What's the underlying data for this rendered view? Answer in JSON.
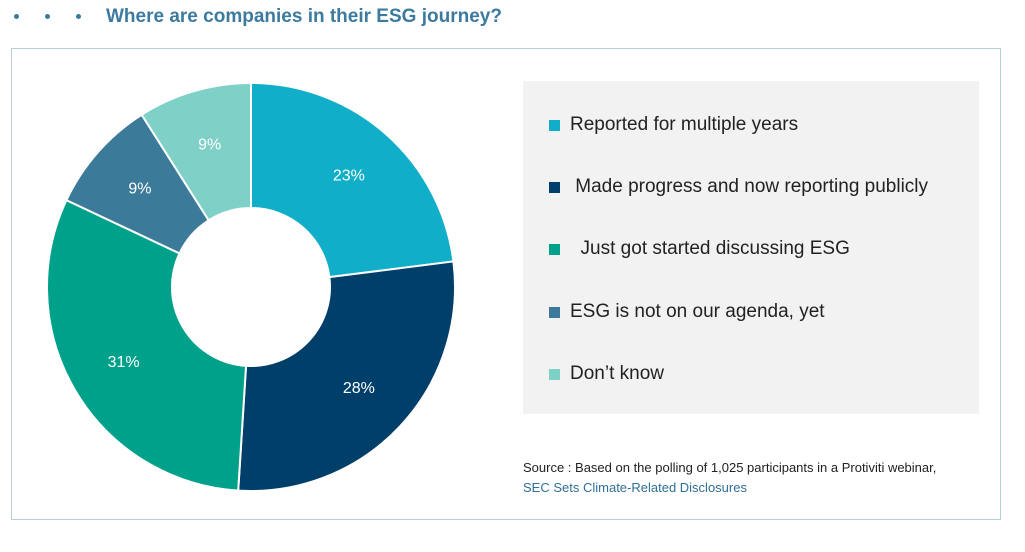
{
  "header": {
    "title": "Where are companies in their ESG journey?"
  },
  "colors": {
    "title": "#3d7a9f",
    "bullet": "#3b7a9e",
    "frame_border": "#b9cfd6",
    "legend_bg": "#f2f2f2",
    "source_link": "#2f6f98"
  },
  "chart_data": {
    "type": "pie",
    "variant": "donut",
    "categories": [
      "Reported for multiple years",
      "Made progress and now reporting publicly",
      "Just got started discussing ESG",
      "ESG is not on our agenda, yet",
      "Don’t know"
    ],
    "values": [
      23,
      28,
      31,
      9,
      9
    ],
    "value_labels": [
      "23%",
      "28%",
      "31%",
      "9%",
      "9%"
    ],
    "colors": [
      "#10aec8",
      "#003f6a",
      "#00a18b",
      "#3c7a9a",
      "#7fd1c8"
    ],
    "start_angle_deg": 0,
    "direction": "clockwise",
    "legend_position": "right"
  },
  "legend": {
    "items": [
      {
        "label": "Reported for multiple years",
        "color": "#10aec8"
      },
      {
        "label": " Made progress and now reporting publicly",
        "color": "#003f6a"
      },
      {
        "label": "  Just got started discussing ESG",
        "color": "#00a18b"
      },
      {
        "label": "ESG is not on our agenda, yet",
        "color": "#3c7a9a"
      },
      {
        "label": "Don’t know",
        "color": "#7fd1c8"
      }
    ]
  },
  "source": {
    "text": "Source : Based on the polling of 1,025 participants in a Protiviti webinar,",
    "link_text": "SEC Sets Climate-Related Disclosures"
  }
}
